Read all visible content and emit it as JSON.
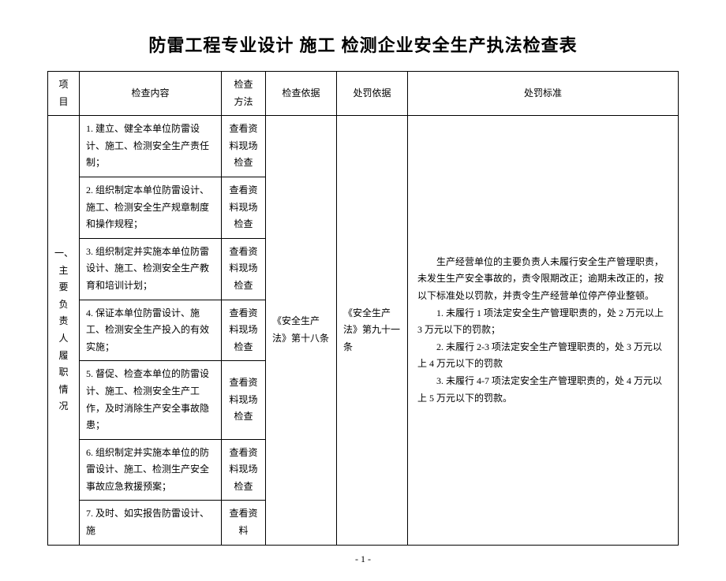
{
  "title": "防雷工程专业设计 施工 检测企业安全生产执法检查表",
  "headers": {
    "project": "项目",
    "content": "检查内容",
    "method": "检查\n方法",
    "basis": "检查依据",
    "penalty_basis": "处罚依据",
    "penalty_standard": "处罚标准"
  },
  "project_label": "一、主要负责人履职情况",
  "method_text": "查看资料现场检查",
  "basis_text": "《安全生产法》第十八条",
  "penalty_basis_text": "《安全生产法》第九十一条",
  "rows": [
    "1. 建立、健全本单位防雷设计、施工、检测安全生产责任制；",
    "2. 组织制定本单位防雷设计、施工、检测安全生产规章制度和操作规程；",
    "3. 组织制定并实施本单位防雷设计、施工、检测安全生产教育和培训计划；",
    "4. 保证本单位防雷设计、施工、检测安全生产投入的有效实施；",
    "5. 督促、检查本单位的防雷设计、施工、检测安全生产工作，及时消除生产安全事故隐患；",
    "6. 组织制定并实施本单位的防雷设计、施工、检测生产安全事故应急救援预案；",
    "7. 及时、如实报告防雷设计、施"
  ],
  "method_last": "查看资料",
  "standard_paragraphs": [
    "生产经营单位的主要负责人未履行安全生产管理职责，未发生生产安全事故的，责令限期改正；逾期未改正的，按以下标准处以罚款，并责令生产经营单位停产停业整顿。",
    "1. 未履行 1 项法定安全生产管理职责的，处 2 万元以上 3 万元以下的罚款；",
    "2. 未履行 2-3 项法定安全生产管理职责的，处 3 万元以上 4 万元以下的罚款",
    "3. 未履行 4-7 项法定安全生产管理职责的，处 4 万元以上 5 万元以下的罚款。"
  ],
  "page_number": "- 1 -"
}
